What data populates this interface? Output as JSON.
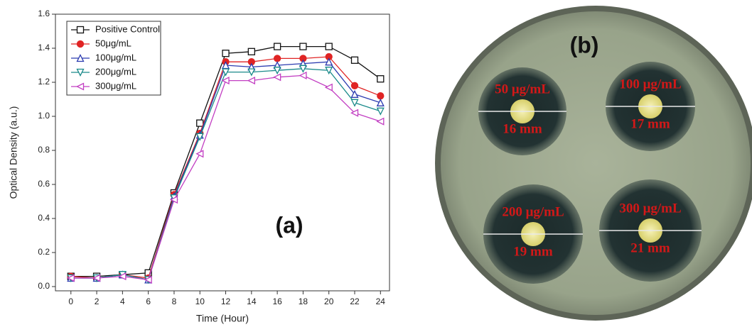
{
  "chart_data": {
    "type": "line",
    "x_label": "Time (Hour)",
    "y_label": "Optical Density (a.u.)",
    "annotation": "(a)",
    "x": [
      0,
      2,
      4,
      6,
      8,
      10,
      12,
      14,
      16,
      18,
      20,
      22,
      24
    ],
    "series": [
      {
        "name": "Positive Control",
        "color": "#111111",
        "marker": "square",
        "values": [
          0.06,
          0.06,
          0.07,
          0.08,
          0.55,
          0.96,
          1.37,
          1.38,
          1.41,
          1.41,
          1.41,
          1.33,
          1.22
        ]
      },
      {
        "name": "50μg/mL",
        "color": "#e02424",
        "marker": "circle",
        "values": [
          0.06,
          0.05,
          0.07,
          0.05,
          0.54,
          0.9,
          1.32,
          1.32,
          1.34,
          1.34,
          1.35,
          1.18,
          1.12
        ]
      },
      {
        "name": "100μg/mL",
        "color": "#2b3bb0",
        "marker": "triangle-up",
        "values": [
          0.05,
          0.05,
          0.07,
          0.04,
          0.53,
          0.89,
          1.3,
          1.29,
          1.3,
          1.31,
          1.32,
          1.13,
          1.08
        ]
      },
      {
        "name": "200μg/mL",
        "color": "#1a8a8a",
        "marker": "triangle-down",
        "values": [
          0.05,
          0.05,
          0.07,
          0.04,
          0.52,
          0.88,
          1.26,
          1.26,
          1.27,
          1.28,
          1.27,
          1.08,
          1.03
        ]
      },
      {
        "name": "300μg/mL",
        "color": "#c23ec2",
        "marker": "triangle-left",
        "values": [
          0.05,
          0.05,
          0.06,
          0.04,
          0.51,
          0.78,
          1.21,
          1.21,
          1.23,
          1.24,
          1.17,
          1.02,
          0.97
        ]
      }
    ],
    "xlim": [
      -1.2,
      24.7
    ],
    "ylim": [
      -0.025,
      1.6
    ],
    "xticks": [
      0,
      2,
      4,
      6,
      8,
      10,
      12,
      14,
      16,
      18,
      20,
      22,
      24
    ],
    "yticks": [
      {
        "value": 0,
        "label": "0.0"
      },
      0.2,
      0.4,
      0.6,
      0.8,
      {
        "value": 1,
        "label": "1.0"
      },
      1.2,
      1.4,
      1.6
    ],
    "legend": "upper-left",
    "grid": false
  },
  "photo": {
    "label": "(b)",
    "zones": [
      {
        "concentration": "50 μg/mL",
        "diameter": "16 mm"
      },
      {
        "concentration": "100 μg/mL",
        "diameter": "17 mm"
      },
      {
        "concentration": "200 μg/mL",
        "diameter": "19 mm"
      },
      {
        "concentration": "300 μg/mL",
        "diameter": "21 mm"
      }
    ]
  }
}
